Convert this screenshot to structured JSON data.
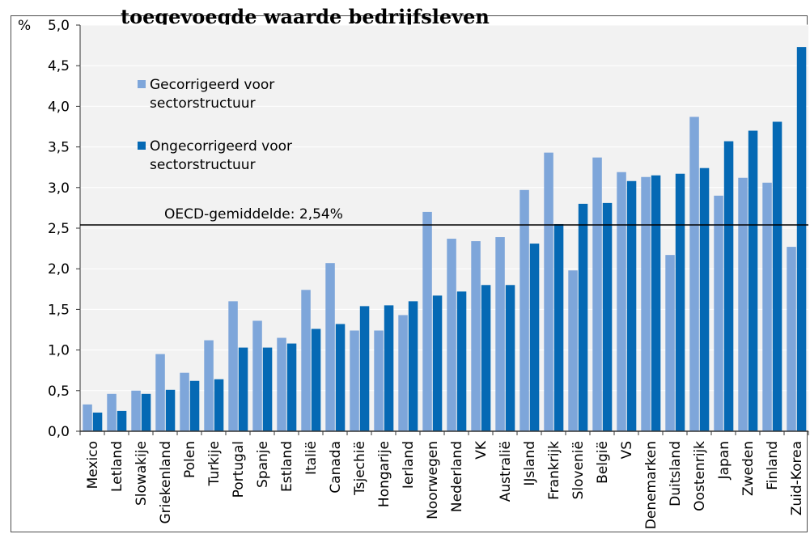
{
  "chart_data": {
    "type": "bar",
    "title": "toegevoegde waarde bedrijfsleven",
    "ylabel": "%",
    "ylim": [
      0,
      5.0
    ],
    "yticks": [
      "0,0",
      "0,5",
      "1,0",
      "1,5",
      "2,0",
      "2,5",
      "3,0",
      "3,5",
      "4,0",
      "4,5",
      "5,0"
    ],
    "grid": true,
    "legend_position": "top-left",
    "categories": [
      "Mexico",
      "Letland",
      "Slowakije",
      "Griekenland",
      "Polen",
      "Turkije",
      "Portugal",
      "Spanje",
      "Estland",
      "Italië",
      "Canada",
      "Tsjechië",
      "Hongarije",
      "Ierland",
      "Noorwegen",
      "Nederland",
      "VK",
      "Australië",
      "IJsland",
      "Frankrijk",
      "Slovenië",
      "België",
      "VS",
      "Denemarken",
      "Duitsland",
      "Oostenrijk",
      "Japan",
      "Zweden",
      "Finland",
      "Zuid-Korea"
    ],
    "series": [
      {
        "name": "Gecorrigeerd voor sectorstructuur",
        "color": "#7ea6da",
        "values": [
          0.33,
          0.46,
          0.5,
          0.95,
          0.72,
          1.12,
          1.6,
          1.36,
          1.15,
          1.74,
          2.07,
          1.24,
          1.24,
          1.43,
          2.7,
          2.37,
          2.34,
          2.39,
          2.97,
          3.43,
          1.98,
          3.37,
          3.19,
          3.13,
          2.17,
          3.87,
          2.9,
          3.12,
          3.06,
          2.27
        ]
      },
      {
        "name": "Ongecorrigeerd voor sectorstructuur",
        "color": "#0569b4",
        "values": [
          0.23,
          0.25,
          0.46,
          0.51,
          0.62,
          0.64,
          1.03,
          1.03,
          1.08,
          1.26,
          1.32,
          1.54,
          1.55,
          1.6,
          1.67,
          1.72,
          1.8,
          1.8,
          2.31,
          2.55,
          2.8,
          2.81,
          3.08,
          3.15,
          3.17,
          3.24,
          3.57,
          3.7,
          3.81,
          4.73
        ]
      }
    ],
    "reference_line": {
      "value": 2.54,
      "label": "OECD-gemiddelde: 2,54%"
    },
    "legend": [
      "Gecorrigeerd voor",
      "sectorstructuur",
      "Ongecorrigeerd voor",
      "sectorstructuur"
    ]
  }
}
